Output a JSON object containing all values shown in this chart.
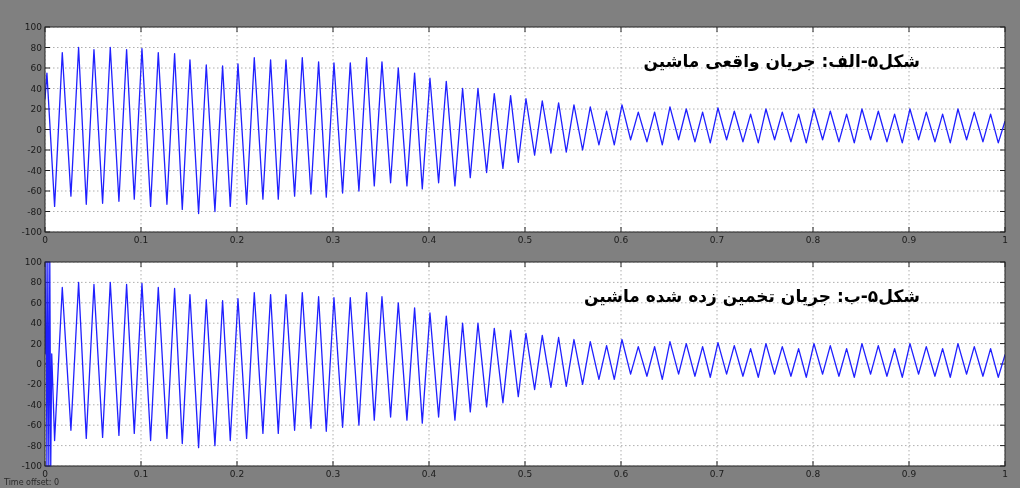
{
  "chart_data": [
    {
      "type": "line",
      "title": "شکل۵-الف: جریان واقعی ماشین",
      "xlim": [
        0,
        1
      ],
      "ylim": [
        -100,
        100
      ],
      "xticks": [
        0,
        0.1,
        0.2,
        0.3,
        0.4,
        0.5,
        0.6,
        0.7,
        0.8,
        0.9,
        1
      ],
      "yticks": [
        -100,
        -80,
        -60,
        -40,
        -20,
        0,
        20,
        40,
        60,
        80,
        100
      ],
      "grid": true,
      "x": [
        0,
        0.002,
        0.01,
        0.018,
        0.027,
        0.035,
        0.043,
        0.051,
        0.06,
        0.068,
        0.077,
        0.085,
        0.093,
        0.101,
        0.11,
        0.118,
        0.127,
        0.135,
        0.143,
        0.151,
        0.16,
        0.168,
        0.177,
        0.185,
        0.193,
        0.201,
        0.21,
        0.218,
        0.227,
        0.235,
        0.243,
        0.251,
        0.26,
        0.268,
        0.277,
        0.285,
        0.293,
        0.301,
        0.31,
        0.318,
        0.327,
        0.335,
        0.343,
        0.351,
        0.36,
        0.368,
        0.377,
        0.385,
        0.393,
        0.401,
        0.41,
        0.418,
        0.427,
        0.435,
        0.443,
        0.451,
        0.46,
        0.468,
        0.477,
        0.485,
        0.493,
        0.501,
        0.51,
        0.518,
        0.527,
        0.535,
        0.543,
        0.551,
        0.56,
        0.568,
        0.577,
        0.585,
        0.593,
        0.601,
        0.61,
        0.618,
        0.627,
        0.635,
        0.643,
        0.651,
        0.66,
        0.668,
        0.677,
        0.685,
        0.693,
        0.701,
        0.71,
        0.718,
        0.727,
        0.735,
        0.743,
        0.751,
        0.76,
        0.768,
        0.777,
        0.785,
        0.793,
        0.801,
        0.81,
        0.818,
        0.827,
        0.835,
        0.843,
        0.851,
        0.86,
        0.868,
        0.877,
        0.885,
        0.893,
        0.901,
        0.91,
        0.918,
        0.927,
        0.935,
        0.943,
        0.951,
        0.96,
        0.968,
        0.977,
        0.985,
        0.993,
        1.0
      ],
      "series": [
        {
          "color": "#2020ff",
          "values": [
            30,
            55,
            -75,
            75,
            -65,
            80,
            -73,
            78,
            -72,
            80,
            -70,
            78,
            -68,
            79,
            -75,
            75,
            -73,
            74,
            -78,
            68,
            -82,
            63,
            -80,
            62,
            -75,
            64,
            -73,
            70,
            -68,
            68,
            -68,
            68,
            -65,
            70,
            -63,
            66,
            -66,
            65,
            -62,
            65,
            -60,
            70,
            -55,
            66,
            -52,
            60,
            -55,
            55,
            -58,
            50,
            -52,
            47,
            -55,
            40,
            -47,
            40,
            -42,
            35,
            -38,
            33,
            -32,
            30,
            -25,
            28,
            -23,
            26,
            -22,
            24,
            -20,
            22,
            -15,
            18,
            -15,
            24,
            -10,
            17,
            -12,
            17,
            -15,
            22,
            -10,
            20,
            -12,
            17,
            -13,
            21,
            -10,
            18,
            -12,
            15,
            -13,
            20,
            -10,
            17,
            -12,
            15,
            -13,
            20,
            -10,
            18,
            -12,
            15,
            -13,
            20,
            -10,
            18,
            -12,
            15,
            -13,
            20,
            -10,
            17,
            -12,
            15,
            -13,
            20,
            -10,
            17,
            -12,
            15,
            -13,
            8
          ]
        }
      ]
    },
    {
      "type": "line",
      "title": "شکل۵-ب: جریان تخمین زده شده ماشین",
      "xlim": [
        0,
        1
      ],
      "ylim": [
        -100,
        100
      ],
      "xticks": [
        0,
        0.1,
        0.2,
        0.3,
        0.4,
        0.5,
        0.6,
        0.7,
        0.8,
        0.9,
        1
      ],
      "yticks": [
        -100,
        -80,
        -60,
        -40,
        -20,
        0,
        20,
        40,
        60,
        80,
        100
      ],
      "grid": true,
      "annotations": [
        "Time offset:  0"
      ],
      "x": [
        0,
        0.001,
        0.002,
        0.003,
        0.004,
        0.005,
        0.006,
        0.007,
        0.01,
        0.018,
        0.027,
        0.035,
        0.043,
        0.051,
        0.06,
        0.068,
        0.077,
        0.085,
        0.093,
        0.101,
        0.11,
        0.118,
        0.127,
        0.135,
        0.143,
        0.151,
        0.16,
        0.168,
        0.177,
        0.185,
        0.193,
        0.201,
        0.21,
        0.218,
        0.227,
        0.235,
        0.243,
        0.251,
        0.26,
        0.268,
        0.277,
        0.285,
        0.293,
        0.301,
        0.31,
        0.318,
        0.327,
        0.335,
        0.343,
        0.351,
        0.36,
        0.368,
        0.377,
        0.385,
        0.393,
        0.401,
        0.41,
        0.418,
        0.427,
        0.435,
        0.443,
        0.451,
        0.46,
        0.468,
        0.477,
        0.485,
        0.493,
        0.501,
        0.51,
        0.518,
        0.527,
        0.535,
        0.543,
        0.551,
        0.56,
        0.568,
        0.577,
        0.585,
        0.593,
        0.601,
        0.61,
        0.618,
        0.627,
        0.635,
        0.643,
        0.651,
        0.66,
        0.668,
        0.677,
        0.685,
        0.693,
        0.701,
        0.71,
        0.718,
        0.727,
        0.735,
        0.743,
        0.751,
        0.76,
        0.768,
        0.777,
        0.785,
        0.793,
        0.801,
        0.81,
        0.818,
        0.827,
        0.835,
        0.843,
        0.851,
        0.86,
        0.868,
        0.877,
        0.885,
        0.893,
        0.901,
        0.91,
        0.918,
        0.927,
        0.935,
        0.943,
        0.951,
        0.96,
        0.968,
        0.977,
        0.985,
        0.993,
        1.0
      ],
      "series": [
        {
          "color": "#2020ff",
          "values": [
            10,
            100,
            -100,
            100,
            -100,
            100,
            -100,
            10,
            -75,
            75,
            -65,
            80,
            -73,
            78,
            -72,
            80,
            -70,
            78,
            -68,
            79,
            -75,
            75,
            -73,
            74,
            -78,
            68,
            -82,
            63,
            -80,
            62,
            -75,
            64,
            -73,
            70,
            -68,
            68,
            -68,
            68,
            -65,
            70,
            -63,
            66,
            -66,
            65,
            -62,
            65,
            -60,
            70,
            -55,
            66,
            -52,
            60,
            -55,
            55,
            -58,
            50,
            -52,
            47,
            -55,
            40,
            -47,
            40,
            -42,
            35,
            -38,
            33,
            -32,
            30,
            -25,
            28,
            -23,
            26,
            -22,
            24,
            -20,
            22,
            -15,
            18,
            -15,
            24,
            -10,
            17,
            -12,
            17,
            -15,
            22,
            -10,
            20,
            -12,
            17,
            -13,
            21,
            -10,
            18,
            -12,
            15,
            -13,
            20,
            -10,
            17,
            -12,
            15,
            -13,
            20,
            -10,
            18,
            -12,
            15,
            -13,
            20,
            -10,
            18,
            -12,
            15,
            -13,
            20,
            -10,
            17,
            -12,
            15,
            -13,
            20,
            -10,
            17,
            -12,
            15,
            -13,
            9
          ]
        }
      ]
    }
  ]
}
